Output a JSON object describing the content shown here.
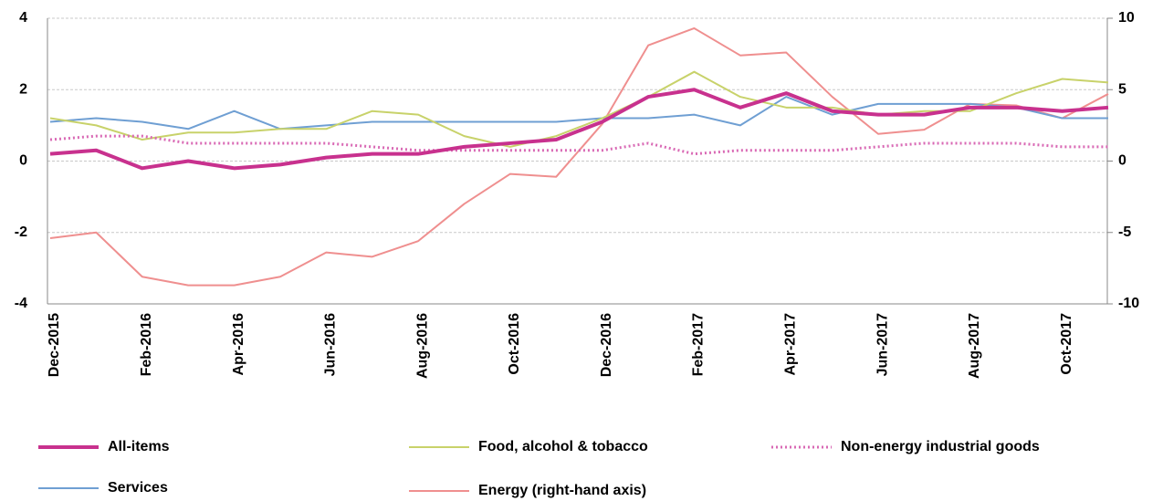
{
  "chart_data": {
    "type": "line",
    "categories": [
      "Dec-2015",
      null,
      "Feb-2016",
      null,
      "Apr-2016",
      null,
      "Jun-2016",
      null,
      "Aug-2016",
      null,
      "Oct-2016",
      null,
      "Dec-2016",
      null,
      "Feb-2017",
      null,
      "Apr-2017",
      null,
      "Jun-2017",
      null,
      "Aug-2017",
      null,
      "Oct-2017",
      null
    ],
    "ylim": [
      -4,
      4
    ],
    "yticks": [
      -4,
      -2,
      0,
      2,
      4
    ],
    "y2lim": [
      -10,
      10
    ],
    "y2ticks": [
      -10,
      -5,
      0,
      5,
      10
    ],
    "grid": true,
    "series": [
      {
        "name": "All-items",
        "color": "#c8318e",
        "values": [
          0.2,
          0.3,
          -0.2,
          0.0,
          -0.2,
          -0.1,
          0.1,
          0.2,
          0.2,
          0.4,
          0.5,
          0.6,
          1.1,
          1.8,
          2.0,
          1.5,
          1.9,
          1.4,
          1.3,
          1.3,
          1.5,
          1.5,
          1.4,
          1.5
        ]
      },
      {
        "name": "Food, alcohol & tobacco",
        "color": "#c8d26a",
        "values": [
          1.2,
          1.0,
          0.6,
          0.8,
          0.8,
          0.9,
          0.9,
          1.4,
          1.3,
          0.7,
          0.4,
          0.7,
          1.2,
          1.8,
          2.5,
          1.8,
          1.5,
          1.5,
          1.3,
          1.4,
          1.4,
          1.9,
          2.3,
          2.2
        ]
      },
      {
        "name": "Non-energy industrial goods",
        "color": "#d96ab5",
        "style": "dotted",
        "values": [
          0.6,
          0.7,
          0.7,
          0.5,
          0.5,
          0.5,
          0.5,
          0.4,
          0.3,
          0.3,
          0.3,
          0.3,
          0.3,
          0.5,
          0.2,
          0.3,
          0.3,
          0.3,
          0.4,
          0.5,
          0.5,
          0.5,
          0.4,
          0.4
        ]
      },
      {
        "name": "Services",
        "color": "#6f9fd3",
        "values": [
          1.1,
          1.2,
          1.1,
          0.9,
          1.4,
          0.9,
          1.0,
          1.1,
          1.1,
          1.1,
          1.1,
          1.1,
          1.2,
          1.2,
          1.3,
          1.0,
          1.8,
          1.3,
          1.6,
          1.6,
          1.6,
          1.5,
          1.2,
          1.2
        ]
      },
      {
        "name": "Energy (right-hand axis)",
        "color": "#ef8f8f",
        "axis": "y2",
        "values": [
          -5.4,
          -5.0,
          -8.1,
          -8.7,
          -8.7,
          -8.1,
          -6.4,
          -6.7,
          -5.6,
          -3.0,
          -0.9,
          -1.1,
          2.6,
          8.1,
          9.3,
          7.4,
          7.6,
          4.5,
          1.9,
          2.2,
          4.0,
          3.9,
          3.0,
          4.7
        ]
      }
    ]
  }
}
